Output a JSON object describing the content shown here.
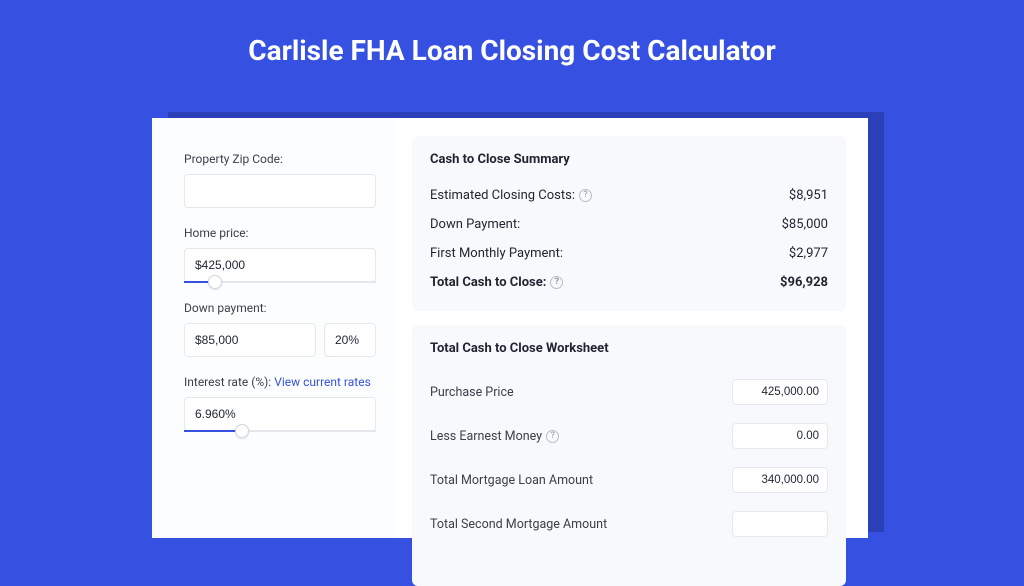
{
  "colors": {
    "page_bg": "#3651e2",
    "shadow_bg": "#2a3fb8",
    "card_bg": "#ffffff",
    "left_col_bg": "#fcfdfe",
    "panel_bg": "#f7f9fc",
    "text_primary": "#1f2430",
    "text_secondary": "#3a3f4a",
    "border": "#e4e7ec",
    "link": "#3651e2",
    "slider_fill": "#3651e2"
  },
  "header": {
    "title": "Carlisle FHA Loan Closing Cost Calculator",
    "title_fontsize": 28
  },
  "form": {
    "zip": {
      "label": "Property Zip Code:",
      "value": ""
    },
    "home_price": {
      "label": "Home price:",
      "value": "$425,000",
      "slider_pct": 16
    },
    "down_payment": {
      "label": "Down payment:",
      "value": "$85,000",
      "pct_value": "20%",
      "slider_pct": 0
    },
    "interest": {
      "label_prefix": "Interest rate (%): ",
      "link_text": "View current rates",
      "value": "6.960%",
      "slider_pct": 30
    }
  },
  "summary": {
    "title": "Cash to Close Summary",
    "rows": [
      {
        "label": "Estimated Closing Costs:",
        "help": true,
        "value": "$8,951",
        "bold": false
      },
      {
        "label": "Down Payment:",
        "help": false,
        "value": "$85,000",
        "bold": false
      },
      {
        "label": "First Monthly Payment:",
        "help": false,
        "value": "$2,977",
        "bold": false
      },
      {
        "label": "Total Cash to Close:",
        "help": true,
        "value": "$96,928",
        "bold": true
      }
    ]
  },
  "worksheet": {
    "title": "Total Cash to Close Worksheet",
    "rows": [
      {
        "label": "Purchase Price",
        "help": false,
        "value": "425,000.00"
      },
      {
        "label": "Less Earnest Money",
        "help": true,
        "value": "0.00"
      },
      {
        "label": "Total Mortgage Loan Amount",
        "help": false,
        "value": "340,000.00"
      },
      {
        "label": "Total Second Mortgage Amount",
        "help": false,
        "value": ""
      }
    ]
  }
}
